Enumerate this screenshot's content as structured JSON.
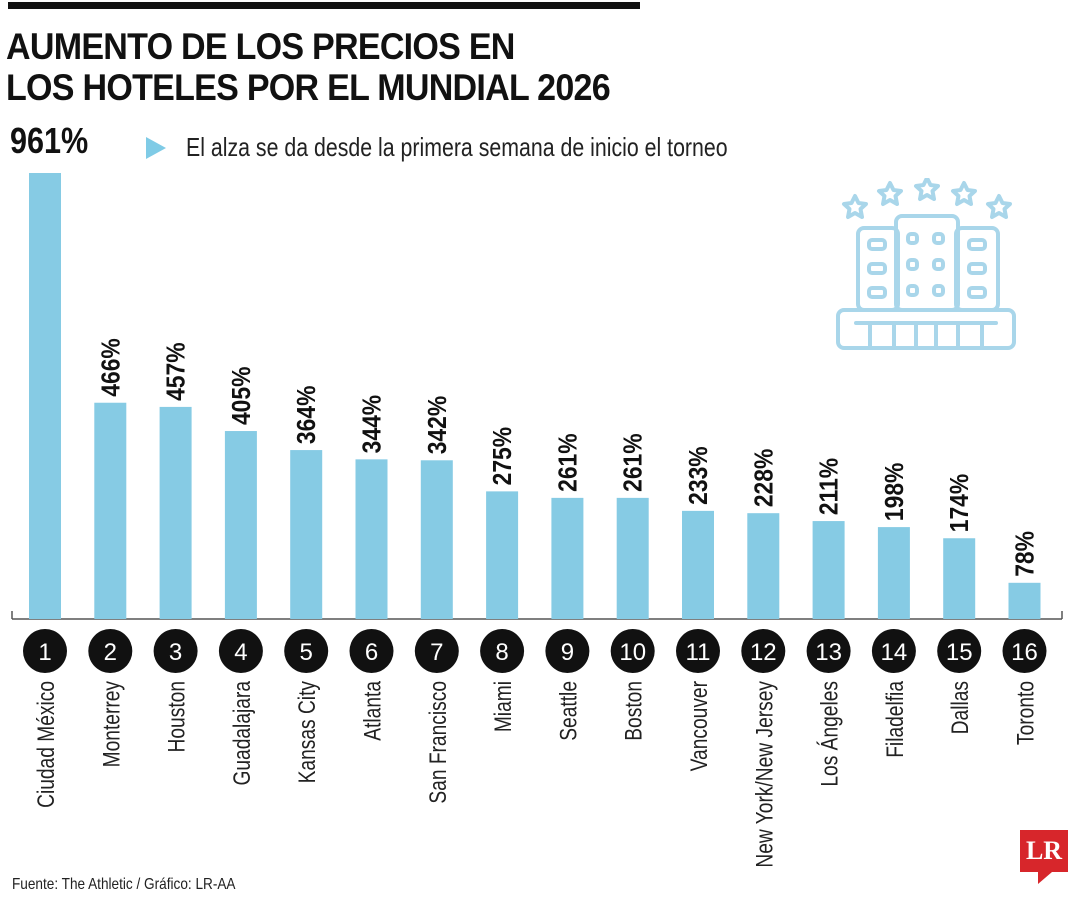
{
  "header": {
    "title_line1": "AUMENTO DE LOS PRECIOS EN",
    "title_line2": "LOS HOTELES POR EL MUNDIAL 2026",
    "note": "El alza se da desde la primera semana de inicio el torneo"
  },
  "footer": {
    "source": "Fuente: The Athletic / Gráfico: LR-AA"
  },
  "logo": {
    "text": "LR"
  },
  "icons": {
    "hotel": "hotel-five-stars-icon",
    "note_marker": "triangle-arrow-icon"
  },
  "colors": {
    "bar": "#86cbe4",
    "badge": "#111111",
    "icon": "#a9d6ea",
    "logo": "#d7262b"
  },
  "chart_data": {
    "type": "bar",
    "title": "AUMENTO DE LOS PRECIOS EN LOS HOTELES POR EL MUNDIAL 2026",
    "categories": [
      "Ciudad México",
      "Monterrey",
      "Houston",
      "Guadalajara",
      "Kansas City",
      "Atlanta",
      "San Francisco",
      "Miami",
      "Seattle",
      "Boston",
      "Vancouver",
      "New York/New Jersey",
      "Los Ángeles",
      "Filadelfia",
      "Dallas",
      "Toronto"
    ],
    "ranks": [
      "1",
      "2",
      "3",
      "4",
      "5",
      "6",
      "7",
      "8",
      "9",
      "10",
      "11",
      "12",
      "13",
      "14",
      "15",
      "16"
    ],
    "values": [
      961,
      466,
      457,
      405,
      364,
      344,
      342,
      275,
      261,
      261,
      233,
      228,
      211,
      198,
      174,
      78
    ],
    "value_labels": [
      "961%",
      "466%",
      "457%",
      "405%",
      "364%",
      "344%",
      "342%",
      "275%",
      "261%",
      "261%",
      "233%",
      "228%",
      "211%",
      "198%",
      "174%",
      "78%"
    ],
    "unit": "%",
    "ylim": [
      0,
      961
    ],
    "grid": false
  }
}
